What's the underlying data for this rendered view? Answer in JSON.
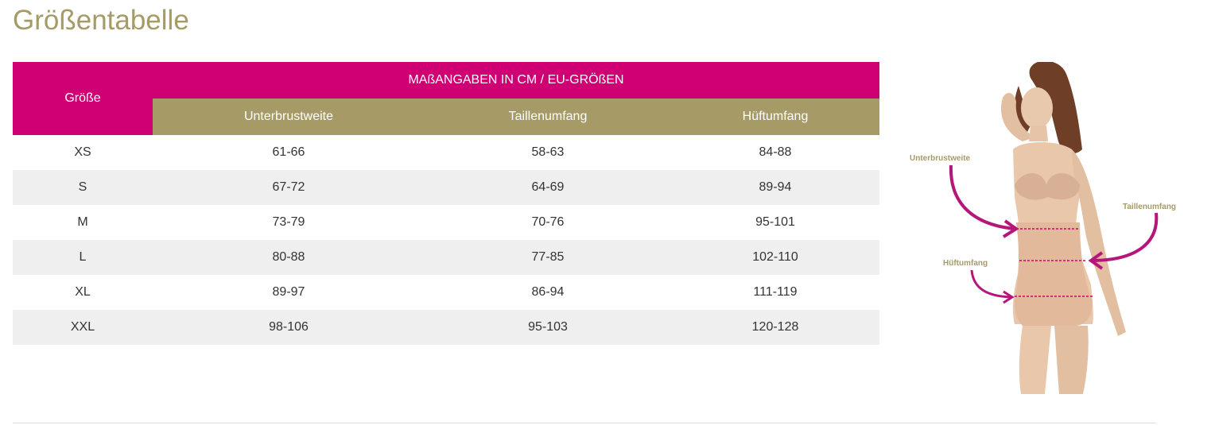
{
  "page": {
    "title": "Größentabelle"
  },
  "table": {
    "size_header": "Größe",
    "group_header": "MAßANGABEN IN CM / EU-GRÖßEN",
    "columns": [
      "Unterbrustweite",
      "Taillenumfang",
      "Hüftumfang"
    ],
    "rows": [
      {
        "size": "XS",
        "values": [
          "61-66",
          "58-63",
          "84-88"
        ]
      },
      {
        "size": "S",
        "values": [
          "67-72",
          "64-69",
          "89-94"
        ]
      },
      {
        "size": "M",
        "values": [
          "73-79",
          "70-76",
          "95-101"
        ]
      },
      {
        "size": "L",
        "values": [
          "80-88",
          "77-85",
          "102-110"
        ]
      },
      {
        "size": "XL",
        "values": [
          "89-97",
          "86-94",
          "111-119"
        ]
      },
      {
        "size": "XXL",
        "values": [
          "98-106",
          "95-103",
          "120-128"
        ]
      }
    ]
  },
  "figure": {
    "labels": {
      "underbust": "Unterbrustweite",
      "waist": "Taillenumfang",
      "hip": "Hüftumfang"
    }
  },
  "colors": {
    "accent_magenta": "#cf0073",
    "accent_gold": "#a69a66",
    "row_stripe": "#efefef"
  }
}
